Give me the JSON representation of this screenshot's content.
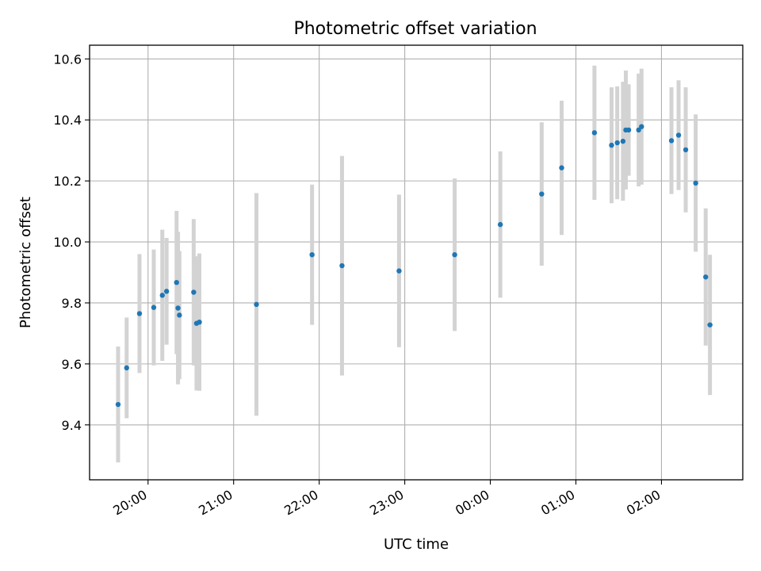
{
  "chart_data": {
    "type": "scatter",
    "title": "Photometric offset variation",
    "xlabel": "UTC time",
    "ylabel": "Photometric offset",
    "x_ticks": [
      "20:00",
      "21:00",
      "22:00",
      "23:00",
      "00:00",
      "01:00",
      "02:00"
    ],
    "x_tick_minutes": [
      1200,
      1260,
      1320,
      1380,
      1440,
      1500,
      1560
    ],
    "xlim_minutes": [
      1159,
      1617
    ],
    "y_ticks": [
      "9.4",
      "9.6",
      "9.8",
      "10.0",
      "10.2",
      "10.4",
      "10.6"
    ],
    "y_tick_values": [
      9.4,
      9.6,
      9.8,
      10.0,
      10.2,
      10.4,
      10.6
    ],
    "ylim": [
      9.22,
      10.645
    ],
    "grid": true,
    "colors": {
      "point": "#1f77b4",
      "errorbar": "#d3d3d3",
      "grid": "#b0b0b0"
    },
    "points": [
      {
        "t": "19:39",
        "y": 9.467,
        "err": 0.19
      },
      {
        "t": "19:45",
        "y": 9.587,
        "err": 0.165
      },
      {
        "t": "19:54",
        "y": 9.765,
        "err": 0.195
      },
      {
        "t": "20:04",
        "y": 9.785,
        "err": 0.19
      },
      {
        "t": "20:10",
        "y": 9.825,
        "err": 0.215
      },
      {
        "t": "20:13",
        "y": 9.838,
        "err": 0.175
      },
      {
        "t": "20:20",
        "y": 9.867,
        "err": 0.235
      },
      {
        "t": "20:21",
        "y": 9.783,
        "err": 0.25
      },
      {
        "t": "20:22",
        "y": 9.76,
        "err": 0.21
      },
      {
        "t": "20:32",
        "y": 9.835,
        "err": 0.24
      },
      {
        "t": "20:34",
        "y": 9.733,
        "err": 0.22
      },
      {
        "t": "20:36",
        "y": 9.737,
        "err": 0.225
      },
      {
        "t": "21:16",
        "y": 9.795,
        "err": 0.365
      },
      {
        "t": "21:55",
        "y": 9.958,
        "err": 0.23
      },
      {
        "t": "22:16",
        "y": 9.922,
        "err": 0.36
      },
      {
        "t": "22:56",
        "y": 9.905,
        "err": 0.25
      },
      {
        "t": "23:35",
        "y": 9.958,
        "err": 0.25
      },
      {
        "t": "00:07",
        "y": 10.057,
        "err": 0.24
      },
      {
        "t": "00:36",
        "y": 10.157,
        "err": 0.235
      },
      {
        "t": "00:50",
        "y": 10.243,
        "err": 0.22
      },
      {
        "t": "01:13",
        "y": 10.358,
        "err": 0.22
      },
      {
        "t": "01:25",
        "y": 10.317,
        "err": 0.19
      },
      {
        "t": "01:29",
        "y": 10.325,
        "err": 0.185
      },
      {
        "t": "01:33",
        "y": 10.33,
        "err": 0.195
      },
      {
        "t": "01:35",
        "y": 10.367,
        "err": 0.195
      },
      {
        "t": "01:37",
        "y": 10.367,
        "err": 0.15
      },
      {
        "t": "01:44",
        "y": 10.367,
        "err": 0.185
      },
      {
        "t": "01:46",
        "y": 10.378,
        "err": 0.19
      },
      {
        "t": "02:07",
        "y": 10.332,
        "err": 0.175
      },
      {
        "t": "02:12",
        "y": 10.35,
        "err": 0.18
      },
      {
        "t": "02:17",
        "y": 10.302,
        "err": 0.205
      },
      {
        "t": "02:24",
        "y": 10.193,
        "err": 0.225
      },
      {
        "t": "02:31",
        "y": 9.885,
        "err": 0.225
      },
      {
        "t": "02:34",
        "y": 9.728,
        "err": 0.23
      }
    ]
  }
}
